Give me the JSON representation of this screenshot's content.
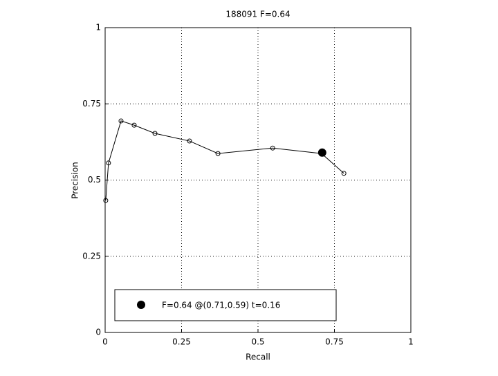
{
  "chart_data": {
    "type": "line",
    "title": "188091 F=0.64",
    "x_label": "Recall",
    "y_label": "Precision",
    "xlim": [
      0,
      1
    ],
    "ylim": [
      0,
      1
    ],
    "xticks": [
      0,
      0.25,
      0.5,
      0.75,
      1
    ],
    "yticks": [
      0,
      0.25,
      0.5,
      0.75,
      1
    ],
    "grid": true,
    "legend": "lower left",
    "series": [
      {
        "x": [
          0.002,
          0.011,
          0.052,
          0.095,
          0.163,
          0.276,
          0.369,
          0.548,
          0.708,
          0.781
        ],
        "values": [
          0.433,
          0.556,
          0.694,
          0.68,
          0.653,
          0.628,
          0.587,
          0.605,
          0.587,
          0.522
        ],
        "color": "#000000"
      },
      {
        "name": "F=0.64 @(0.71,0.59) t=0.16",
        "x": [
          0.71
        ],
        "values": [
          0.59
        ],
        "color": "#000000"
      }
    ]
  }
}
